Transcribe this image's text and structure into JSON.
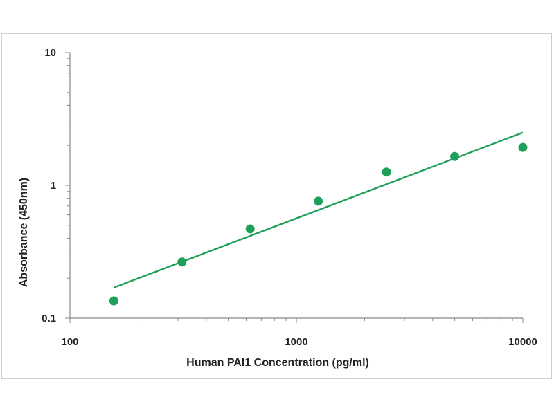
{
  "chart_data": {
    "type": "scatter",
    "title": "",
    "xlabel": "Human PAI1 Concentration (pg/ml)",
    "ylabel": "Absorbance (450nm)",
    "x_scale": "log",
    "y_scale": "log",
    "xlim": [
      100,
      10000
    ],
    "ylim": [
      0.1,
      10
    ],
    "x_ticks": [
      100,
      1000,
      10000
    ],
    "y_ticks": [
      0.1,
      1,
      10
    ],
    "x_tick_labels": [
      "100",
      "1000",
      "10000"
    ],
    "y_tick_labels": [
      "0.1",
      "1",
      "10"
    ],
    "grid": false,
    "legend": "none",
    "series": [
      {
        "points": [
          {
            "x": 156.25,
            "y": 0.135
          },
          {
            "x": 312.5,
            "y": 0.265
          },
          {
            "x": 625,
            "y": 0.47
          },
          {
            "x": 1250,
            "y": 0.76
          },
          {
            "x": 2500,
            "y": 1.26
          },
          {
            "x": 5000,
            "y": 1.65
          },
          {
            "x": 10000,
            "y": 1.93
          }
        ],
        "trendline": {
          "type": "power",
          "x_range": [
            156.25,
            10000
          ],
          "y_range": [
            0.17,
            2.5
          ]
        },
        "color": "#1fa05a"
      }
    ]
  }
}
